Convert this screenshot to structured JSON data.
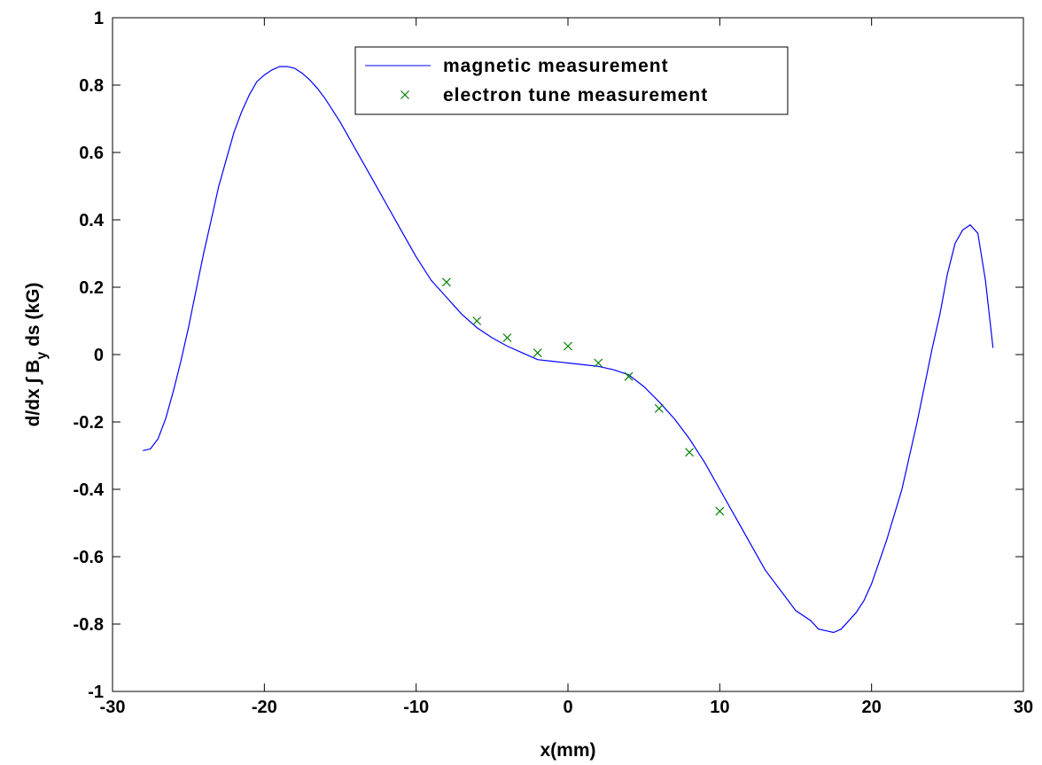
{
  "chart_data": {
    "type": "line",
    "title": "",
    "xlabel": "x(mm)",
    "ylabel_parts": {
      "main": "d/dx ∫ B",
      "sub": "y",
      "rest": " ds (kG)"
    },
    "xlim": [
      -30,
      30
    ],
    "ylim": [
      -1,
      1
    ],
    "xticks": [
      -30,
      -20,
      -10,
      0,
      10,
      20,
      30
    ],
    "yticks": [
      -1,
      -0.8,
      -0.6,
      -0.4,
      -0.2,
      0,
      0.2,
      0.4,
      0.6,
      0.8,
      1
    ],
    "grid": false,
    "legend_position": "top-center",
    "series": [
      {
        "name": "magnetic measurement",
        "style": "line",
        "color": "#0000ff",
        "x": [
          -28,
          -27.5,
          -27,
          -26.5,
          -26,
          -25.5,
          -25,
          -24.5,
          -24,
          -23.5,
          -23,
          -22.5,
          -22,
          -21.5,
          -21,
          -20.5,
          -20,
          -19.5,
          -19,
          -18.5,
          -18,
          -17.5,
          -17,
          -16.5,
          -16,
          -15,
          -14,
          -13,
          -12,
          -11,
          -10,
          -9,
          -8,
          -7,
          -6,
          -5,
          -4,
          -3,
          -2,
          -1,
          0,
          1,
          2,
          3,
          4,
          5,
          6,
          7,
          8,
          9,
          10,
          11,
          12,
          13,
          14,
          15,
          16,
          16.5,
          17,
          17.5,
          18,
          18.5,
          19,
          19.5,
          20,
          21,
          22,
          23,
          24,
          24.5,
          25,
          25.5,
          26,
          26.5,
          27,
          27.5,
          28
        ],
        "y": [
          -0.285,
          -0.28,
          -0.25,
          -0.19,
          -0.11,
          -0.02,
          0.08,
          0.19,
          0.3,
          0.4,
          0.5,
          0.58,
          0.66,
          0.72,
          0.77,
          0.81,
          0.83,
          0.845,
          0.855,
          0.855,
          0.85,
          0.835,
          0.815,
          0.79,
          0.76,
          0.69,
          0.61,
          0.53,
          0.45,
          0.37,
          0.29,
          0.22,
          0.17,
          0.12,
          0.08,
          0.05,
          0.025,
          0.005,
          -0.015,
          -0.02,
          -0.025,
          -0.03,
          -0.035,
          -0.045,
          -0.06,
          -0.095,
          -0.14,
          -0.19,
          -0.25,
          -0.32,
          -0.4,
          -0.48,
          -0.56,
          -0.64,
          -0.7,
          -0.76,
          -0.79,
          -0.815,
          -0.82,
          -0.825,
          -0.815,
          -0.79,
          -0.765,
          -0.73,
          -0.68,
          -0.55,
          -0.4,
          -0.2,
          0.02,
          0.12,
          0.24,
          0.33,
          0.37,
          0.385,
          0.36,
          0.22,
          0.02
        ]
      },
      {
        "name": "electron tune measurement",
        "style": "marker-x",
        "color": "#008000",
        "x": [
          -8,
          -6,
          -4,
          -2,
          0,
          2,
          4,
          6,
          8,
          10
        ],
        "y": [
          0.215,
          0.1,
          0.05,
          0.005,
          0.025,
          -0.025,
          -0.065,
          -0.16,
          -0.29,
          -0.465
        ]
      }
    ]
  }
}
